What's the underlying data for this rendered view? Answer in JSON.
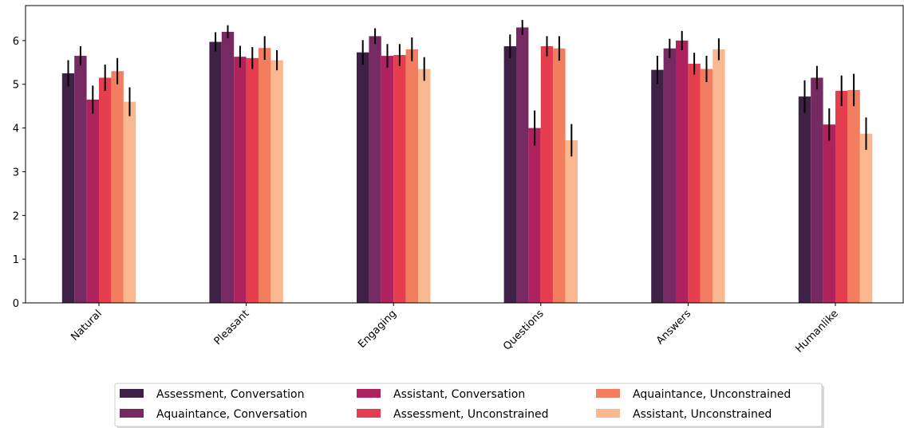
{
  "chart_data": {
    "type": "bar",
    "categories": [
      "Natural",
      "Pleasant",
      "Engaging",
      "Questions",
      "Answers",
      "Humanlike"
    ],
    "series": [
      {
        "name": "Assessment, Conversation",
        "color": "#3f2145",
        "values": [
          5.25,
          5.97,
          5.73,
          5.87,
          5.33,
          4.72
        ],
        "errors": [
          0.3,
          0.22,
          0.28,
          0.27,
          0.32,
          0.37
        ]
      },
      {
        "name": "Aquaintance, Conversation",
        "color": "#772a61",
        "values": [
          5.65,
          6.2,
          6.1,
          6.3,
          5.82,
          5.15
        ],
        "errors": [
          0.22,
          0.15,
          0.18,
          0.17,
          0.22,
          0.27
        ]
      },
      {
        "name": "Assistant, Conversation",
        "color": "#b0225e",
        "values": [
          4.65,
          5.63,
          5.65,
          4.0,
          6.0,
          4.08
        ],
        "errors": [
          0.32,
          0.25,
          0.27,
          0.4,
          0.22,
          0.37
        ]
      },
      {
        "name": "Assessment, Unconstrained",
        "color": "#e43e4f",
        "values": [
          5.15,
          5.6,
          5.67,
          5.87,
          5.47,
          4.85
        ],
        "errors": [
          0.3,
          0.25,
          0.25,
          0.23,
          0.25,
          0.35
        ]
      },
      {
        "name": "Aquaintance, Unconstrained",
        "color": "#f37d5f",
        "values": [
          5.3,
          5.83,
          5.8,
          5.82,
          5.35,
          4.87
        ],
        "errors": [
          0.3,
          0.27,
          0.27,
          0.28,
          0.3,
          0.37
        ]
      },
      {
        "name": "Assistant, Unconstrained",
        "color": "#f9b890",
        "values": [
          4.6,
          5.55,
          5.35,
          3.72,
          5.8,
          3.87
        ],
        "errors": [
          0.33,
          0.23,
          0.27,
          0.37,
          0.25,
          0.37
        ]
      }
    ],
    "yticks": [
      0,
      1,
      2,
      3,
      4,
      5,
      6
    ],
    "ylim": [
      0,
      6.8
    ],
    "legend_position": "bottom-center",
    "legend_columns": 3,
    "grid": false
  }
}
